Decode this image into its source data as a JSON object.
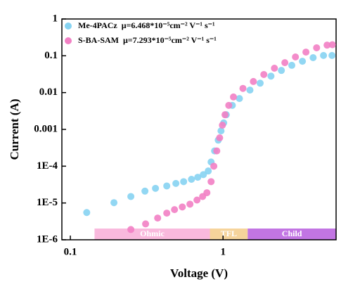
{
  "chart_data": {
    "type": "scatter",
    "xlabel": "Voltage (V)",
    "ylabel": "Current (A)",
    "xscale": "log",
    "yscale": "log",
    "xlim": [
      0.088,
      5.5
    ],
    "ylim": [
      1e-06,
      1
    ],
    "xticks": [
      0.1,
      1
    ],
    "yticks": [
      1,
      0.1,
      0.01,
      0.001,
      {
        "value": 0.0001,
        "label": "1E-4"
      },
      {
        "value": 1e-05,
        "label": "1E-5"
      },
      {
        "value": 1e-06,
        "label": "1E-6"
      }
    ],
    "legend": "upper left",
    "series": [
      {
        "name": "Me-4PACz  μ=6.468*10⁻⁵cm⁻² V⁻¹ s⁻¹",
        "color": "#86d3f2",
        "x": [
          0.128,
          0.193,
          0.249,
          0.308,
          0.361,
          0.428,
          0.491,
          0.552,
          0.621,
          0.683,
          0.743,
          0.8,
          0.835,
          0.88,
          0.93,
          0.97,
          1.01,
          1.05,
          1.15,
          1.28,
          1.5,
          1.75,
          2.06,
          2.41,
          2.82,
          3.31,
          3.89,
          4.55,
          5.17
        ],
        "values": [
          5.5e-06,
          1.02e-05,
          1.5e-05,
          2.1e-05,
          2.5e-05,
          2.9e-05,
          3.4e-05,
          3.8e-05,
          4.4e-05,
          5e-05,
          5.9e-05,
          7.4e-05,
          0.00013,
          0.00026,
          0.00051,
          0.00091,
          0.0015,
          0.0025,
          0.0045,
          0.0069,
          0.0117,
          0.018,
          0.028,
          0.04,
          0.055,
          0.071,
          0.089,
          0.102,
          0.102
        ]
      },
      {
        "name": "S-BA-SAM  μ=7.293*10⁻⁵cm⁻² V⁻¹ s⁻¹",
        "color": "#f280c4",
        "x": [
          0.249,
          0.311,
          0.373,
          0.428,
          0.481,
          0.541,
          0.607,
          0.675,
          0.735,
          0.784,
          0.835,
          0.87,
          0.91,
          0.95,
          0.99,
          1.03,
          1.09,
          1.17,
          1.35,
          1.58,
          1.85,
          2.17,
          2.54,
          2.98,
          3.49,
          4.1,
          4.8,
          5.2
        ],
        "values": [
          1.9e-06,
          2.7e-06,
          3.9e-06,
          5.3e-06,
          6.6e-06,
          7.8e-06,
          9.3e-06,
          1.2e-05,
          1.5e-05,
          1.9e-05,
          3.8e-05,
          0.0001,
          0.00026,
          0.00059,
          0.0013,
          0.0025,
          0.0045,
          0.0076,
          0.013,
          0.02,
          0.031,
          0.046,
          0.065,
          0.093,
          0.126,
          0.165,
          0.195,
          0.2
        ]
      }
    ],
    "regions": [
      {
        "label": "Ohmic",
        "x": [
          0.144,
          0.82
        ],
        "color": "#f9b9dd"
      },
      {
        "label": "TFL",
        "x": [
          0.82,
          1.45
        ],
        "color": "#f6d49b"
      },
      {
        "label": "Child",
        "x": [
          1.45,
          5.5
        ],
        "color": "#c275e3"
      }
    ]
  }
}
